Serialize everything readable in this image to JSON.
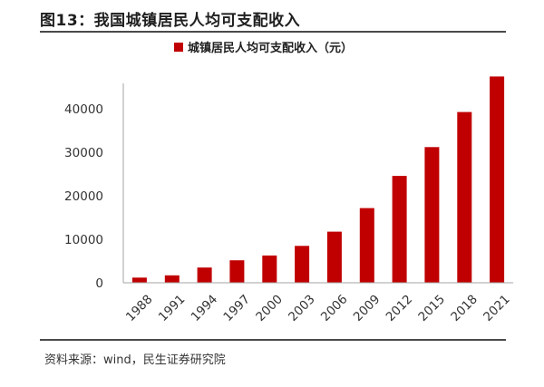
{
  "figure": {
    "title": "图13：我国城镇居民人均可支配收入",
    "source": "资料来源：wind，民生证券研究院"
  },
  "colors": {
    "bar": "#c00000",
    "axis": "#a6a6a6",
    "rule": "#4a4a4a"
  },
  "chart_data": {
    "type": "bar",
    "title": "",
    "xlabel": "",
    "ylabel": "",
    "legend": "top-center",
    "grid": false,
    "categories": [
      "1988",
      "1991",
      "1994",
      "1997",
      "2000",
      "2003",
      "2006",
      "2009",
      "2012",
      "2015",
      "2018",
      "2021"
    ],
    "series": [
      {
        "name": "城镇居民人均可支配收入（元）",
        "values": [
          1181,
          1701,
          3496,
          5160,
          6280,
          8472,
          11759,
          17175,
          24565,
          31195,
          39251,
          47412
        ]
      }
    ],
    "ylim": [
      0,
      45000
    ],
    "yticks": [
      0,
      10000,
      20000,
      30000,
      40000
    ]
  }
}
